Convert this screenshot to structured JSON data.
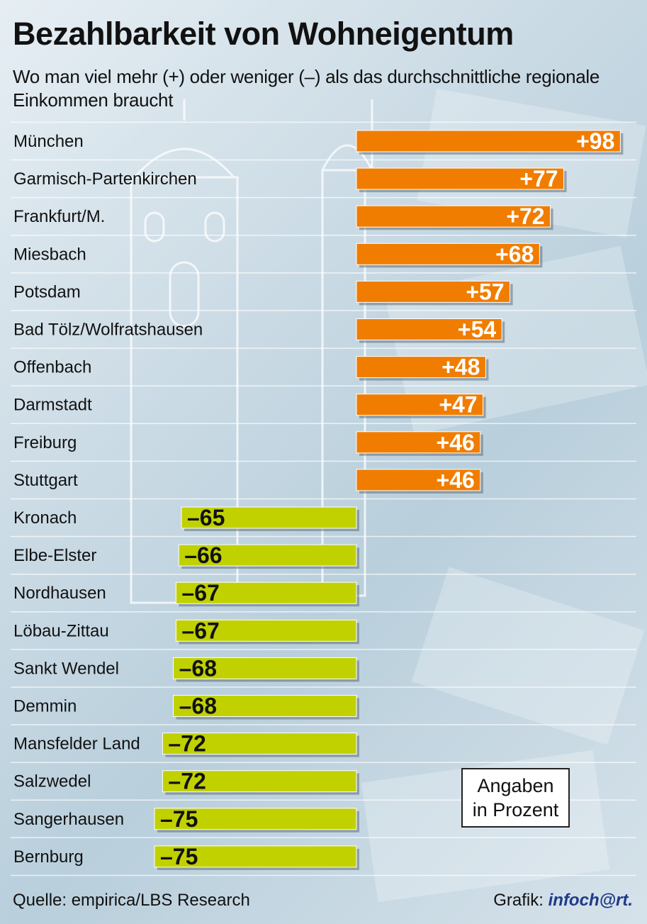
{
  "header": {
    "title": "Bezahlbarkeit von Wohneigentum",
    "subtitle": "Wo man viel mehr (+) oder weniger (–) als das durchschnittliche regionale Einkommen braucht"
  },
  "note": {
    "line1": "Angaben",
    "line2": "in Prozent"
  },
  "footer": {
    "source": "Quelle: empirica/LBS Research",
    "credit_prefix": "Grafik:",
    "credit_logo": "infoch@rt."
  },
  "colors": {
    "positive": "#f07d00",
    "negative": "#c1d100",
    "positive_text": "#ffffff",
    "negative_text": "#111111"
  },
  "chart_data": {
    "type": "bar",
    "orientation": "horizontal",
    "title": "Bezahlbarkeit von Wohneigentum",
    "unit": "Angaben in Prozent",
    "categories": [
      "München",
      "Garmisch-Partenkirchen",
      "Frankfurt/M.",
      "Miesbach",
      "Potsdam",
      "Bad Tölz/Wolfratshausen",
      "Offenbach",
      "Darmstadt",
      "Freiburg",
      "Stuttgart",
      "Kronach",
      "Elbe-Elster",
      "Nordhausen",
      "Löbau-Zittau",
      "Sankt Wendel",
      "Demmin",
      "Mansfelder Land",
      "Salzwedel",
      "Sangerhausen",
      "Bernburg"
    ],
    "values": [
      98,
      77,
      72,
      68,
      57,
      54,
      48,
      47,
      46,
      46,
      -65,
      -66,
      -67,
      -67,
      -68,
      -68,
      -72,
      -72,
      -75,
      -75
    ],
    "value_labels": [
      "+98",
      "+77",
      "+72",
      "+68",
      "+57",
      "+54",
      "+48",
      "+47",
      "+46",
      "+46",
      "–65",
      "–66",
      "–67",
      "–67",
      "–68",
      "–68",
      "–72",
      "–72",
      "–75",
      "–75"
    ]
  }
}
